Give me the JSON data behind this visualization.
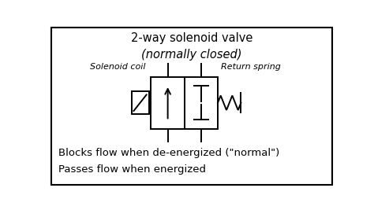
{
  "title_line1": "2-way solenoid valve",
  "title_line2": "(normally closed)",
  "label_left": "Solenoid coil",
  "label_right": "Return spring",
  "bottom_line1": "Blocks flow when de-energized (\"normal\")",
  "bottom_line2": "Passes flow when energized",
  "bg_color": "#ffffff",
  "line_color": "#000000",
  "vx": 0.36,
  "vy": 0.36,
  "vw": 0.115,
  "vh": 0.32
}
